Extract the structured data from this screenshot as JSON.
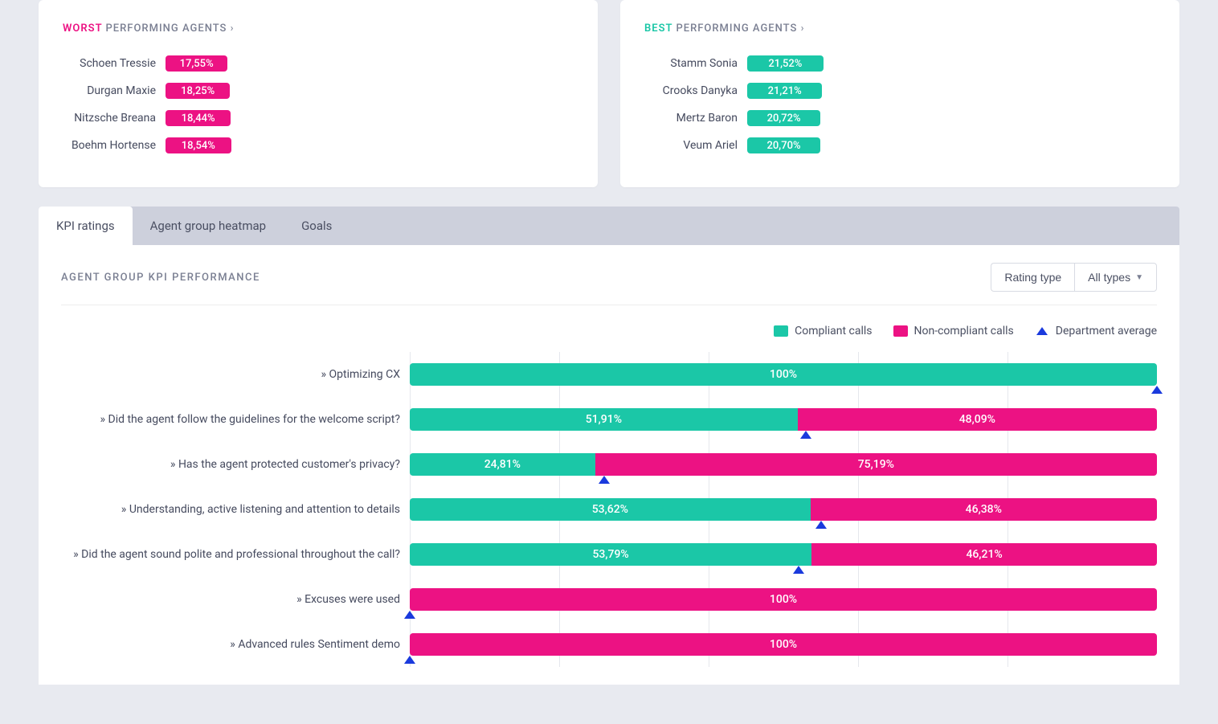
{
  "colors": {
    "worst": "#ec1283",
    "best": "#1bc7a7",
    "compliant": "#1bc7a7",
    "noncompliant": "#ec1283",
    "marker": "#1a3add"
  },
  "worst_card": {
    "highlight": "WORST",
    "rest": "PERFORMING AGENTS",
    "chev": "›",
    "bar_scale_max": 30,
    "agents": [
      {
        "name": "Schoen Tressie",
        "value": 17.55,
        "label": "17,55%"
      },
      {
        "name": "Durgan Maxie",
        "value": 18.25,
        "label": "18,25%"
      },
      {
        "name": "Nitzsche Breana",
        "value": 18.44,
        "label": "18,44%"
      },
      {
        "name": "Boehm Hortense",
        "value": 18.54,
        "label": "18,54%"
      }
    ]
  },
  "best_card": {
    "highlight": "BEST",
    "rest": "PERFORMING AGENTS",
    "chev": "›",
    "bar_scale_max": 30,
    "agents": [
      {
        "name": "Stamm Sonia",
        "value": 21.52,
        "label": "21,52%"
      },
      {
        "name": "Crooks Danyka",
        "value": 21.21,
        "label": "21,21%"
      },
      {
        "name": "Mertz Baron",
        "value": 20.72,
        "label": "20,72%"
      },
      {
        "name": "Veum Ariel",
        "value": 20.7,
        "label": "20,70%"
      }
    ]
  },
  "tabs": [
    {
      "label": "KPI ratings",
      "active": true
    },
    {
      "label": "Agent group heatmap",
      "active": false
    },
    {
      "label": "Goals",
      "active": false
    }
  ],
  "panel": {
    "title": "AGENT GROUP KPI PERFORMANCE",
    "rating_type_label": "Rating type",
    "all_types_label": "All types"
  },
  "legend": {
    "compliant": "Compliant calls",
    "noncompliant": "Non-compliant calls",
    "dept_avg": "Department average"
  },
  "chart": {
    "grid_divisions": 5,
    "rows": [
      {
        "label": "» Optimizing CX",
        "compliant": 100,
        "compliant_label": "100%",
        "noncompliant": 0,
        "noncompliant_label": "",
        "marker": 100
      },
      {
        "label": "» Did the agent follow the guidelines for the welcome script?",
        "compliant": 51.91,
        "compliant_label": "51,91%",
        "noncompliant": 48.09,
        "noncompliant_label": "48,09%",
        "marker": 53
      },
      {
        "label": "» Has the agent protected customer's privacy?",
        "compliant": 24.81,
        "compliant_label": "24,81%",
        "noncompliant": 75.19,
        "noncompliant_label": "75,19%",
        "marker": 26
      },
      {
        "label": "» Understanding, active listening and attention to details",
        "compliant": 53.62,
        "compliant_label": "53,62%",
        "noncompliant": 46.38,
        "noncompliant_label": "46,38%",
        "marker": 55
      },
      {
        "label": "» Did the agent sound polite and professional throughout the call?",
        "compliant": 53.79,
        "compliant_label": "53,79%",
        "noncompliant": 46.21,
        "noncompliant_label": "46,21%",
        "marker": 52
      },
      {
        "label": "» Excuses were used",
        "compliant": 0,
        "compliant_label": "",
        "noncompliant": 100,
        "noncompliant_label": "100%",
        "marker": 0
      },
      {
        "label": "» Advanced rules Sentiment demo",
        "compliant": 0,
        "compliant_label": "",
        "noncompliant": 100,
        "noncompliant_label": "100%",
        "marker": 0
      }
    ]
  }
}
